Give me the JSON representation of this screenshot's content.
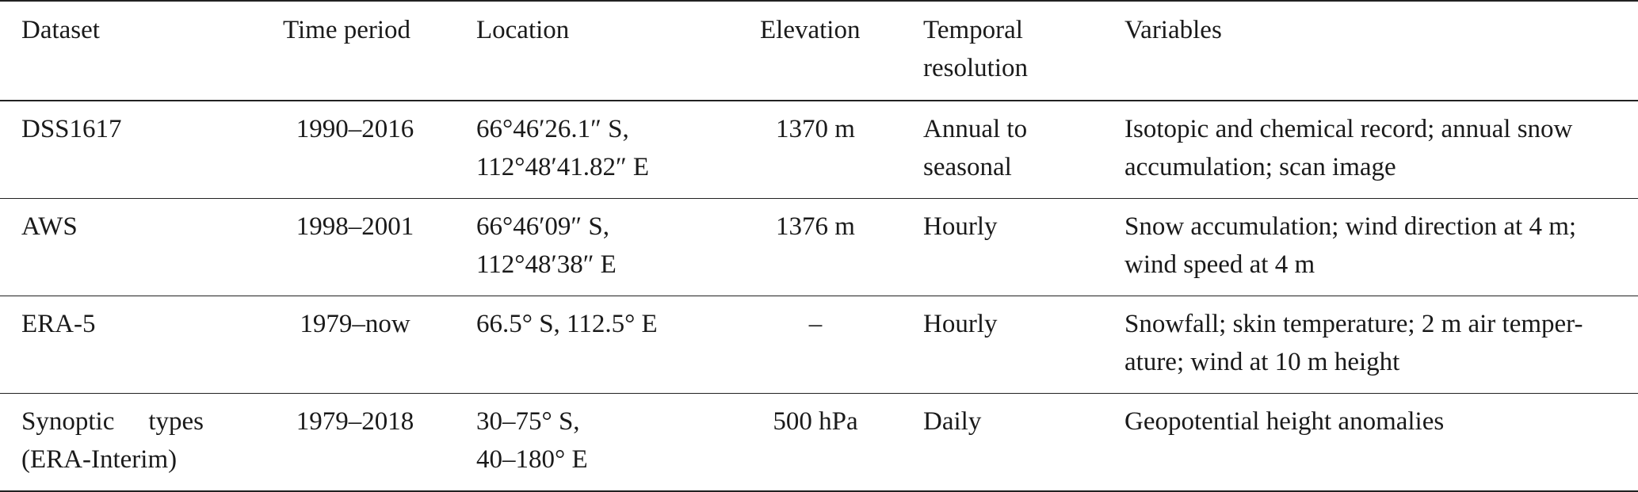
{
  "headers": {
    "dataset": "Dataset",
    "time_period": "Time period",
    "location": "Location",
    "elevation": "Elevation",
    "temporal_resolution_1": "Temporal",
    "temporal_resolution_2": "resolution",
    "variables": "Variables"
  },
  "rows": [
    {
      "dataset_1": "DSS1617",
      "dataset_2": "",
      "time_period": "1990–2016",
      "location_1": "66°46′26.1″ S,",
      "location_2": "112°48′41.82″ E",
      "elevation": "1370 m",
      "temporal_1": "Annual to",
      "temporal_2": "seasonal",
      "variables_1": "Isotopic and chemical record; annual snow",
      "variables_2": "accumulation; scan image"
    },
    {
      "dataset_1": "AWS",
      "dataset_2": "",
      "time_period": "1998–2001",
      "location_1": "66°46′09″ S,",
      "location_2": "112°48′38″ E",
      "elevation": "1376 m",
      "temporal_1": "Hourly",
      "temporal_2": "",
      "variables_1": "Snow accumulation; wind direction at 4 m;",
      "variables_2": "wind speed at 4 m"
    },
    {
      "dataset_1": "ERA-5",
      "dataset_2": "",
      "time_period": "1979–now",
      "location_1": "66.5° S, 112.5° E",
      "location_2": "",
      "elevation": "–",
      "temporal_1": "Hourly",
      "temporal_2": "",
      "variables_1": "Snowfall; skin temperature; 2 m air temper-",
      "variables_2": "ature; wind at 10 m height"
    },
    {
      "dataset_1": "Synoptic types",
      "dataset_2": "(ERA-Interim)",
      "time_period": "1979–2018",
      "location_1": "30–75° S,",
      "location_2": "40–180° E",
      "elevation": "500 hPa",
      "temporal_1": "Daily",
      "temporal_2": "",
      "variables_1": "Geopotential height anomalies",
      "variables_2": ""
    }
  ]
}
